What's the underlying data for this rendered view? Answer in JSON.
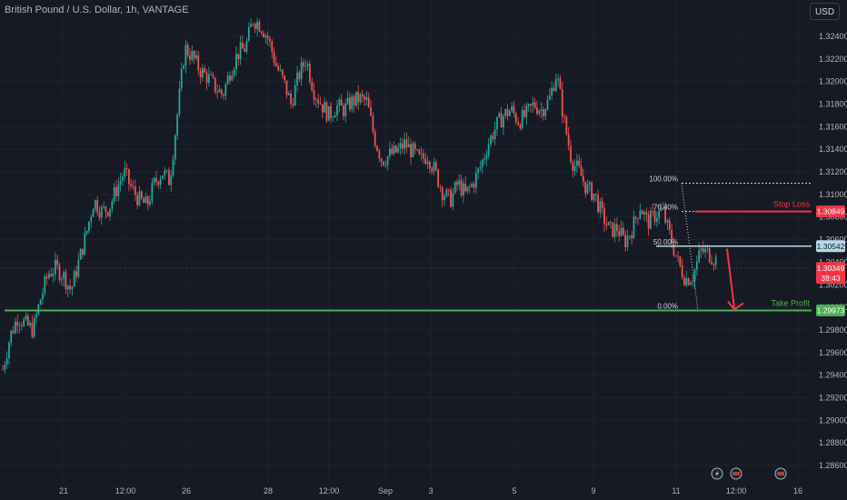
{
  "header": {
    "symbol_title": "British Pound / U.S. Dollar, 1h, VANTAGE",
    "currency": "USD"
  },
  "colors": {
    "background": "#161a25",
    "up": "#26a69a",
    "down": "#ef5350",
    "stop_loss": "#f23645",
    "take_profit": "#4caf50",
    "fib_line": "#d1d4dc",
    "price_label": "#f23645",
    "fib50_label": "#b7d8e8"
  },
  "chart_data": {
    "type": "candlestick",
    "y_axis": {
      "min": 1.2854,
      "max": 1.3258,
      "ticks": [
        "1.32400",
        "1.32200",
        "1.32000",
        "1.31800",
        "1.31600",
        "1.31400",
        "1.31200",
        "1.31000",
        "1.30800",
        "1.30600",
        "1.30400",
        "1.30200",
        "1.30000",
        "1.29800",
        "1.29600",
        "1.29400",
        "1.29200",
        "1.29000",
        "1.28800",
        "1.28600"
      ]
    },
    "x_axis": {
      "ticks": [
        "21",
        "12:00",
        "26",
        "28",
        "12:00",
        "Sep",
        "3",
        "5",
        "9",
        "11",
        "12:00",
        "16"
      ]
    },
    "price_path": [
      1.2945,
      1.2975,
      1.2992,
      1.2985,
      1.298,
      1.3008,
      1.303,
      1.3035,
      1.3028,
      1.3015,
      1.304,
      1.3065,
      1.3095,
      1.3085,
      1.3088,
      1.3105,
      1.312,
      1.3105,
      1.3095,
      1.309,
      1.311,
      1.312,
      1.3112,
      1.317,
      1.323,
      1.3222,
      1.321,
      1.3204,
      1.3195,
      1.3188,
      1.321,
      1.3225,
      1.323,
      1.3255,
      1.325,
      1.3238,
      1.3215,
      1.32,
      1.318,
      1.3205,
      1.322,
      1.3192,
      1.318,
      1.317,
      1.3178,
      1.3175,
      1.3182,
      1.3185,
      1.3182,
      1.315,
      1.313,
      1.3135,
      1.3138,
      1.3145,
      1.3138,
      1.313,
      1.3135,
      1.312,
      1.3102,
      1.3095,
      1.311,
      1.31,
      1.311,
      1.3125,
      1.3145,
      1.316,
      1.317,
      1.3175,
      1.3165,
      1.317,
      1.318,
      1.3175,
      1.3183,
      1.3208,
      1.3165,
      1.313,
      1.312,
      1.3105,
      1.31,
      1.3082,
      1.3068,
      1.307,
      1.3058,
      1.307,
      1.309,
      1.3075,
      1.3082,
      1.3085,
      1.3062,
      1.304,
      1.3025,
      1.3028,
      1.305,
      1.3048,
      1.3042
    ],
    "current_price": "1.30349",
    "countdown": "38:43",
    "trade_setup": {
      "stop_loss_label": "Stop Loss",
      "stop_loss": "1.30849",
      "entry_fib50": "1.30542",
      "take_profit_label": "Take Profit",
      "take_profit": "1.29973"
    },
    "fibonacci": [
      {
        "label": "100.00%",
        "price": 1.311
      },
      {
        "label": "76.40%",
        "price": 1.30849
      },
      {
        "label": "50.00%",
        "price": 1.30542
      },
      {
        "label": "0.00%",
        "price": 1.29973
      }
    ],
    "event_icons": [
      "lightning-icon",
      "us-flag-icon",
      "us-flag-icon"
    ]
  }
}
